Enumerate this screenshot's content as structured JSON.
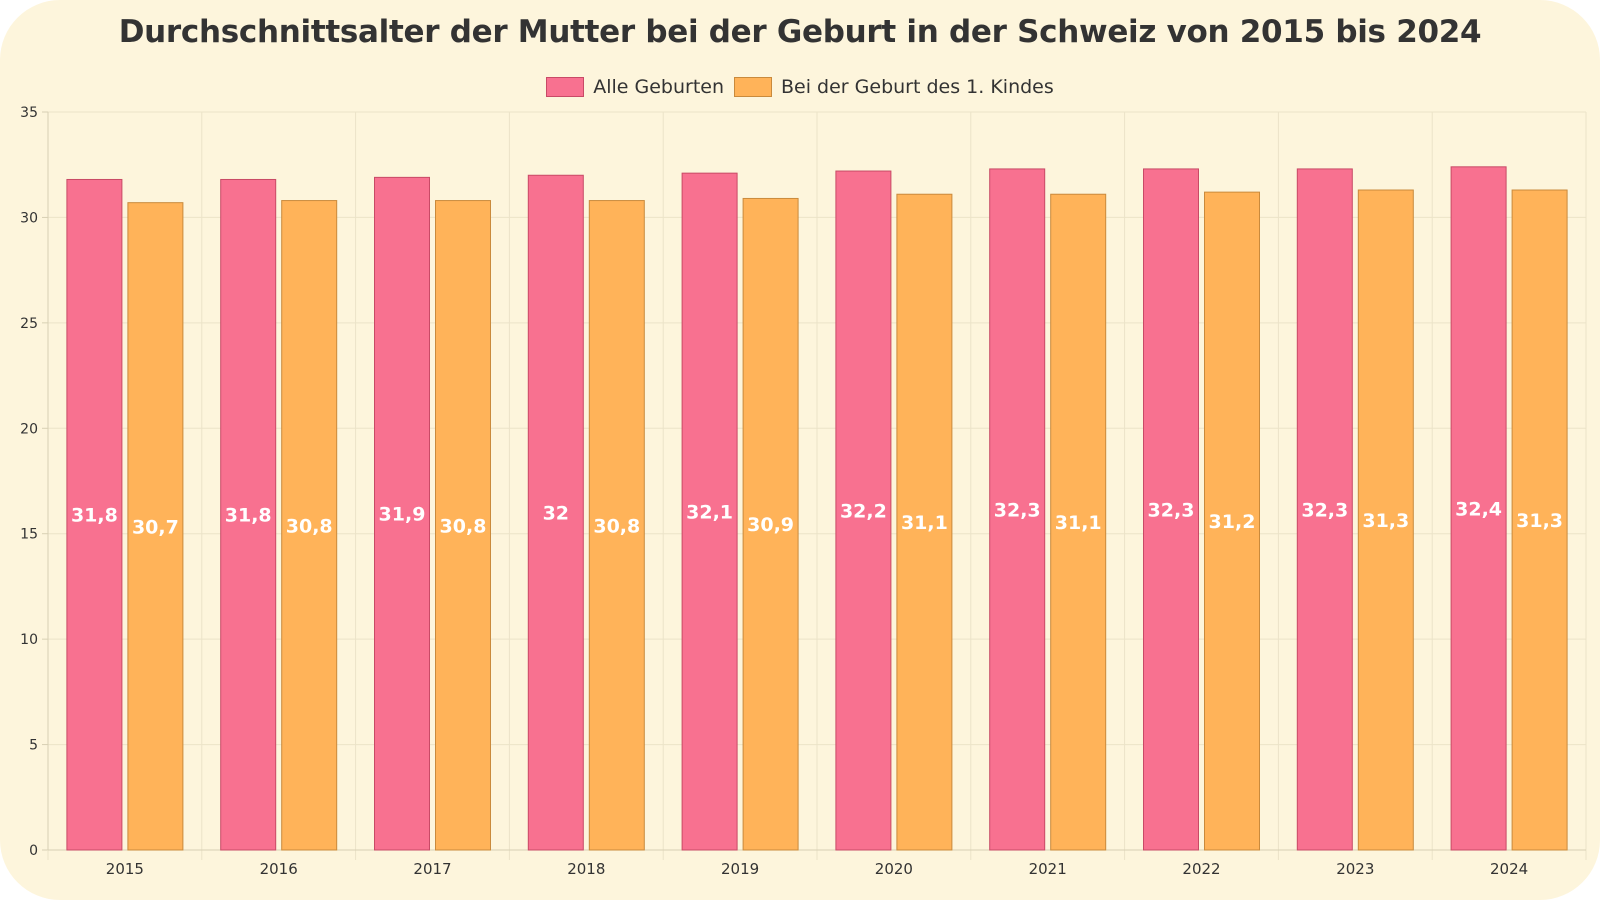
{
  "chart_data": {
    "type": "bar",
    "title": "Durchschnittsalter der Mutter bei der Geburt in der Schweiz von 2015 bis 2024",
    "xlabel": "",
    "ylabel": "",
    "ylim": [
      0,
      35
    ],
    "yticks": [
      "0",
      "5",
      "10",
      "15",
      "20",
      "25",
      "30",
      "35"
    ],
    "grid": true,
    "legend_position": "top-center",
    "categories": [
      "2015",
      "2016",
      "2017",
      "2018",
      "2019",
      "2020",
      "2021",
      "2022",
      "2023",
      "2024"
    ],
    "series": [
      {
        "name": "Alle Geburten",
        "color": "#f87190",
        "border": "#c84a66",
        "values": [
          31.8,
          31.8,
          31.9,
          32,
          32.1,
          32.2,
          32.3,
          32.3,
          32.3,
          32.4
        ],
        "labels": [
          "31,8",
          "31,8",
          "31,9",
          "32",
          "32,1",
          "32,2",
          "32,3",
          "32,3",
          "32,3",
          "32,4"
        ]
      },
      {
        "name": "Bei der Geburt des 1. Kindes",
        "color": "#ffb359",
        "border": "#c98a3c",
        "values": [
          30.7,
          30.8,
          30.8,
          30.8,
          30.9,
          31.1,
          31.1,
          31.2,
          31.3,
          31.3
        ],
        "labels": [
          "30,7",
          "30,8",
          "30,8",
          "30,8",
          "30,9",
          "31,1",
          "31,1",
          "31,2",
          "31,3",
          "31,3"
        ]
      }
    ]
  }
}
